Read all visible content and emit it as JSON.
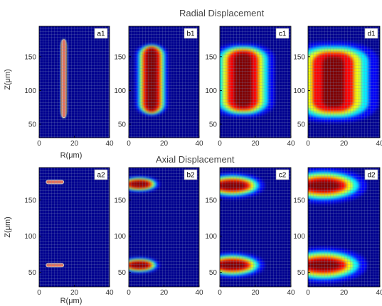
{
  "figure": {
    "radial_title": "Radial Displacement",
    "axial_title": "Axial Displacement",
    "y_label": "Z(μm)",
    "x_label": "R(μm)",
    "x_ticks": [
      "0",
      "20",
      "40"
    ],
    "y_ticks": [
      "50",
      "100",
      "150"
    ],
    "x_range": [
      0,
      40
    ],
    "z_range": [
      30,
      195
    ],
    "colormap": [
      "#00008f",
      "#0000ff",
      "#00ffff",
      "#ffff00",
      "#ff0000",
      "#800000"
    ],
    "grid_color": "#7a8fb8",
    "radial_panels": [
      {
        "label": "a1",
        "source": {
          "r": [
            13,
            15
          ],
          "z": [
            60,
            175
          ]
        },
        "spread": 0.6
      },
      {
        "label": "b1",
        "source": {
          "r": [
            10,
            16
          ],
          "z": [
            70,
            162
          ]
        },
        "spread": 4
      },
      {
        "label": "c1",
        "source": {
          "r": [
            8,
            18
          ],
          "z": [
            75,
            155
          ]
        },
        "spread": 8
      },
      {
        "label": "d1",
        "source": {
          "r": [
            8,
            20
          ],
          "z": [
            75,
            150
          ]
        },
        "spread": 12
      }
    ],
    "axial_panels": [
      {
        "label": "a2",
        "spots": [
          {
            "r": [
              4,
              14
            ],
            "z": 175
          },
          {
            "r": [
              4,
              14
            ],
            "z": 60
          }
        ],
        "spread": 0.8
      },
      {
        "label": "b2",
        "spots": [
          {
            "r": [
              2,
              10
            ],
            "z": 172
          },
          {
            "r": [
              2,
              10
            ],
            "z": 60
          }
        ],
        "spread": 4
      },
      {
        "label": "c2",
        "spots": [
          {
            "r": [
              2,
              12
            ],
            "z": 170
          },
          {
            "r": [
              2,
              12
            ],
            "z": 60
          }
        ],
        "spread": 7
      },
      {
        "label": "d2",
        "spots": [
          {
            "r": [
              3,
              14
            ],
            "z": 170
          },
          {
            "r": [
              3,
              14
            ],
            "z": 60
          }
        ],
        "spread": 10
      }
    ]
  }
}
